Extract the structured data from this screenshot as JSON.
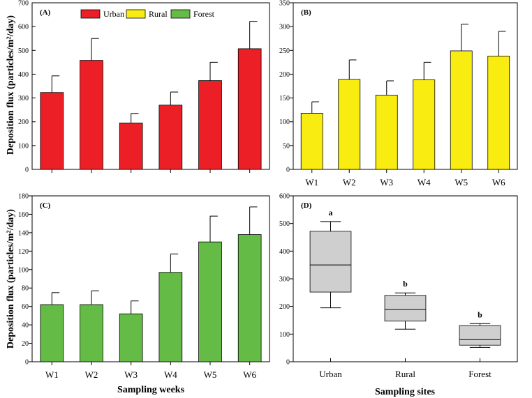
{
  "y_axis_title": "Deposition flux (particles/m²/day)",
  "chart_data": [
    {
      "id": "A",
      "type": "bar",
      "panel_label": "(A)",
      "color": "#ec1f26",
      "categories": [
        "W1",
        "W2",
        "W3",
        "W4",
        "W5",
        "W6"
      ],
      "values": [
        323,
        458,
        195,
        270,
        373,
        507
      ],
      "errors": [
        70,
        92,
        40,
        55,
        77,
        115
      ],
      "ylim": [
        0,
        700
      ],
      "yticks": [
        0,
        100,
        200,
        300,
        400,
        500,
        600,
        700
      ],
      "show_xticklabels": false
    },
    {
      "id": "B",
      "type": "bar",
      "panel_label": "(B)",
      "color": "#f8ec10",
      "categories": [
        "W1",
        "W2",
        "W3",
        "W4",
        "W5",
        "W6"
      ],
      "values": [
        118,
        189,
        156,
        188,
        249,
        238
      ],
      "errors": [
        24,
        41,
        30,
        37,
        56,
        52
      ],
      "ylim": [
        0,
        350
      ],
      "yticks": [
        0,
        50,
        100,
        150,
        200,
        250,
        300,
        350
      ],
      "show_xticklabels": true
    },
    {
      "id": "C",
      "type": "bar",
      "panel_label": "(C)",
      "color": "#64bb46",
      "categories": [
        "W1",
        "W2",
        "W3",
        "W4",
        "W5",
        "W6"
      ],
      "values": [
        62,
        62,
        52,
        97,
        130,
        138
      ],
      "errors": [
        13,
        15,
        14,
        20,
        28,
        30
      ],
      "ylim": [
        0,
        180
      ],
      "yticks": [
        0,
        20,
        40,
        60,
        80,
        100,
        120,
        140,
        160,
        180
      ],
      "xlabel": "Sampling weeks",
      "show_xticklabels": true
    },
    {
      "id": "D",
      "type": "box",
      "panel_label": "(D)",
      "color": "#cfcfcf",
      "categories": [
        "Urban",
        "Rural",
        "Forest"
      ],
      "boxes": [
        {
          "whisker_low": 195,
          "q1": 252,
          "median": 350,
          "q3": 472,
          "whisker_high": 507
        },
        {
          "whisker_low": 118,
          "q1": 147,
          "median": 189,
          "q3": 240,
          "whisker_high": 249
        },
        {
          "whisker_low": 52,
          "q1": 60,
          "median": 80,
          "q3": 131,
          "whisker_high": 138
        }
      ],
      "letters": [
        "a",
        "b",
        "b"
      ],
      "ylim": [
        0,
        600
      ],
      "yticks": [
        0,
        100,
        200,
        300,
        400,
        500,
        600
      ],
      "xlabel": "Sampling sites"
    }
  ],
  "legend": [
    {
      "label": "Urban",
      "color": "#ec1f26"
    },
    {
      "label": "Rural",
      "color": "#f8ec10"
    },
    {
      "label": "Forest",
      "color": "#64bb46"
    }
  ]
}
